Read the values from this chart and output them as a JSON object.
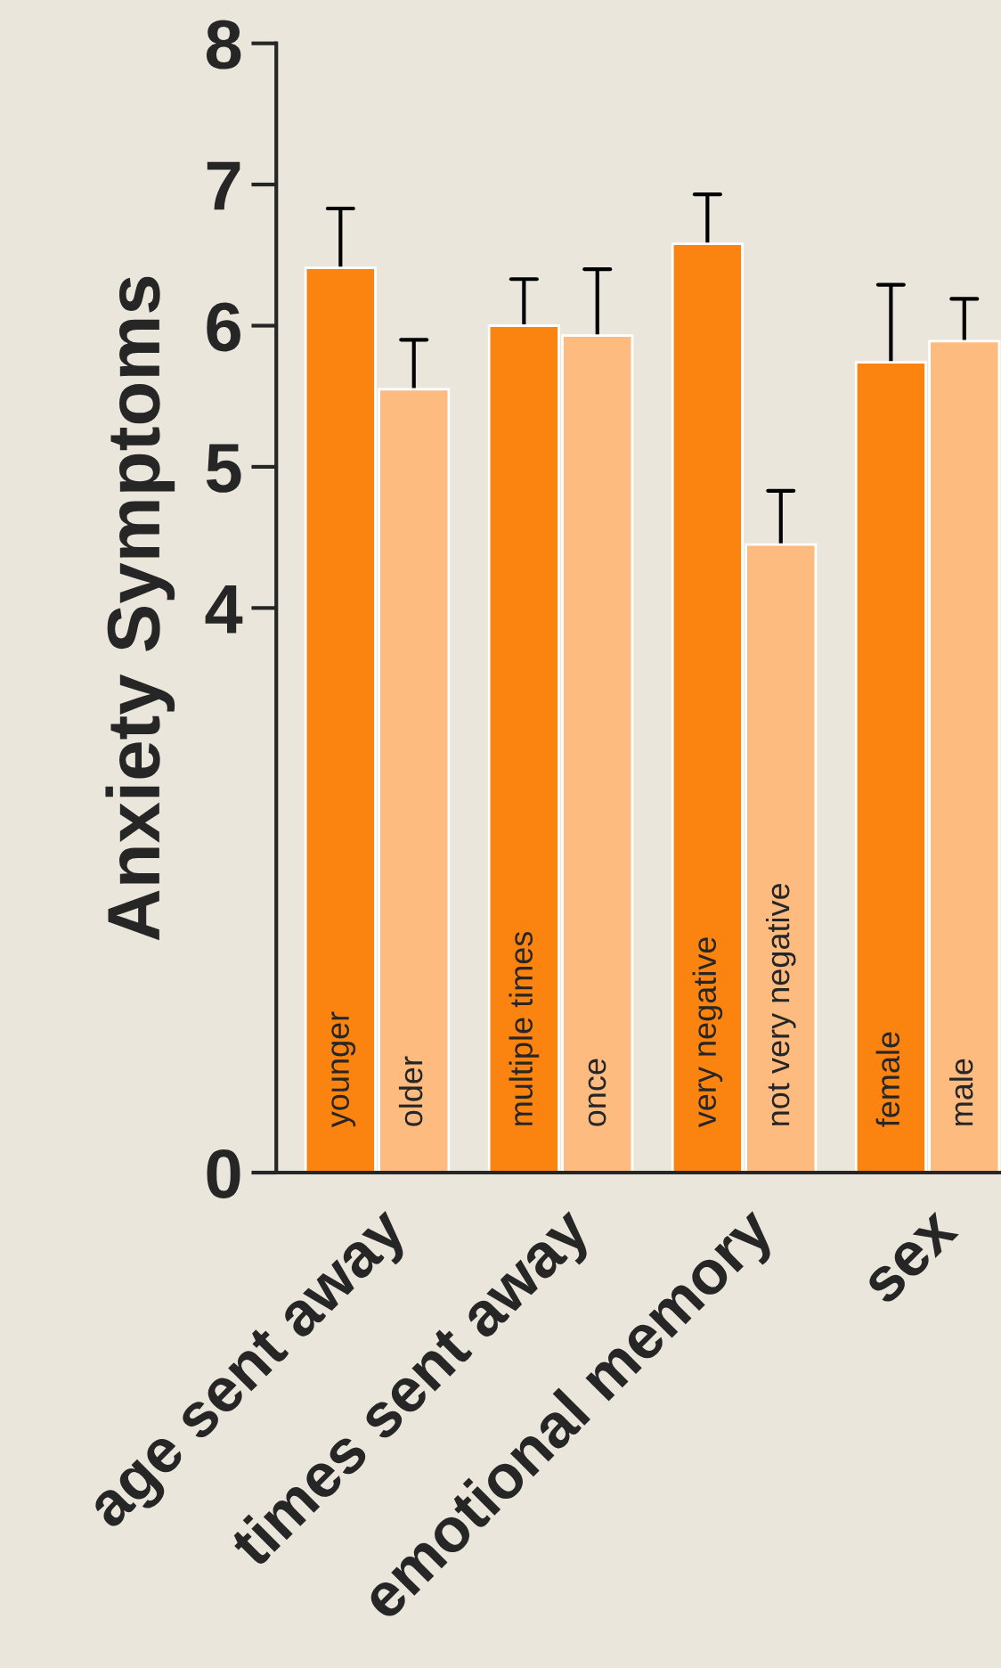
{
  "chart_data": {
    "type": "bar",
    "ylabel": "Anxiety Symptoms",
    "categories": [
      "age sent away",
      "times sent away",
      "emotional memory",
      "sex"
    ],
    "series": [
      {
        "color": "#fb8310",
        "values": [
          6.41,
          6.0,
          6.58,
          5.74
        ],
        "errors": [
          [
            6.41,
            6.83
          ],
          [
            6.0,
            6.33
          ],
          [
            6.58,
            6.93
          ],
          [
            5.74,
            6.29
          ]
        ]
      },
      {
        "color": "#fdbb80",
        "values": [
          5.55,
          5.93,
          4.45,
          5.89
        ],
        "errors": [
          [
            5.55,
            5.9
          ],
          [
            5.93,
            6.4
          ],
          [
            4.45,
            4.83
          ],
          [
            5.89,
            6.19
          ]
        ]
      }
    ],
    "annotations": [
      "younger",
      "older",
      "multiple times",
      "once",
      "very negative",
      "not very negative",
      "female",
      "male"
    ],
    "ylim": [
      0,
      8
    ],
    "yticks": [
      0,
      4,
      5,
      6,
      7,
      8
    ],
    "grid": false,
    "legend": false
  }
}
